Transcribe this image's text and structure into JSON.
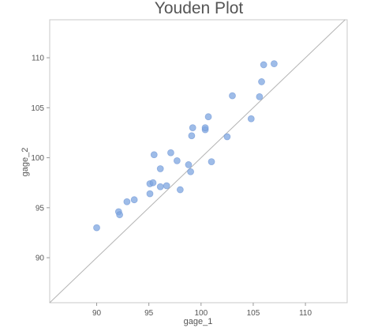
{
  "chart_data": {
    "type": "scatter",
    "title": "Youden Plot",
    "xlabel": "gage_1",
    "ylabel": "gage_2",
    "xlim": [
      85.5,
      114
    ],
    "ylim": [
      85.5,
      113.8
    ],
    "xticks": [
      90,
      95,
      100,
      105,
      110
    ],
    "yticks": [
      90,
      95,
      100,
      105,
      110
    ],
    "reference_line": "y = x",
    "grid": false,
    "point_color": "#7ea6e0",
    "line_color": "#b3b3b3",
    "series": [
      {
        "points": [
          [
            90.0,
            93.0
          ],
          [
            92.1,
            94.6
          ],
          [
            92.2,
            94.3
          ],
          [
            92.9,
            95.6
          ],
          [
            93.6,
            95.8
          ],
          [
            95.1,
            96.4
          ],
          [
            95.1,
            97.4
          ],
          [
            95.4,
            97.5
          ],
          [
            95.5,
            100.3
          ],
          [
            96.1,
            97.1
          ],
          [
            96.1,
            98.9
          ],
          [
            96.7,
            97.2
          ],
          [
            97.1,
            100.5
          ],
          [
            97.7,
            99.7
          ],
          [
            98.0,
            96.8
          ],
          [
            98.8,
            99.3
          ],
          [
            99.0,
            98.6
          ],
          [
            99.1,
            102.2
          ],
          [
            99.2,
            103.0
          ],
          [
            100.4,
            102.8
          ],
          [
            100.4,
            103.0
          ],
          [
            100.7,
            104.1
          ],
          [
            101.0,
            99.6
          ],
          [
            102.5,
            102.1
          ],
          [
            103.0,
            106.2
          ],
          [
            104.8,
            103.9
          ],
          [
            105.6,
            106.1
          ],
          [
            105.8,
            107.6
          ],
          [
            106.0,
            109.3
          ],
          [
            107.0,
            109.4
          ]
        ]
      }
    ]
  }
}
